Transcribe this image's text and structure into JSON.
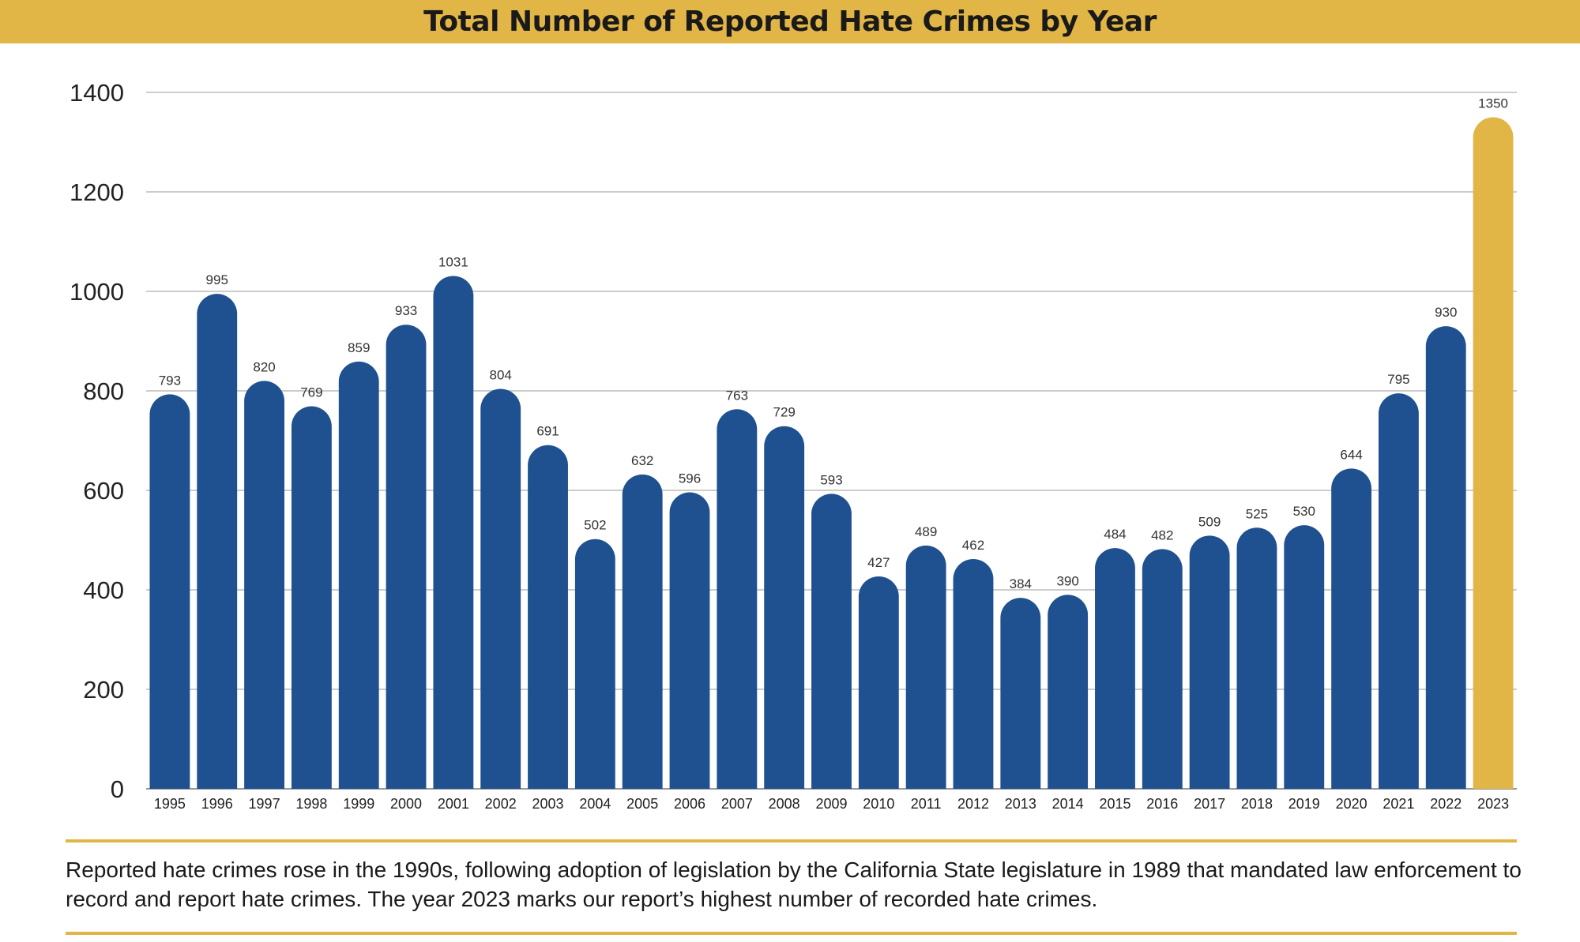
{
  "chart_data": {
    "type": "bar",
    "title": "Total Number of Reported Hate Crimes by Year",
    "xlabel": "",
    "ylabel": "",
    "ylim": [
      0,
      1400
    ],
    "yticks": [
      0,
      200,
      400,
      600,
      800,
      1000,
      1200,
      1400
    ],
    "grid": true,
    "categories": [
      "1995",
      "1996",
      "1997",
      "1998",
      "1999",
      "2000",
      "2001",
      "2002",
      "2003",
      "2004",
      "2005",
      "2006",
      "2007",
      "2008",
      "2009",
      "2010",
      "2011",
      "2012",
      "2013",
      "2014",
      "2015",
      "2016",
      "2017",
      "2018",
      "2019",
      "2020",
      "2021",
      "2022",
      "2023"
    ],
    "values": [
      793,
      995,
      820,
      769,
      859,
      933,
      1031,
      804,
      691,
      502,
      632,
      596,
      763,
      729,
      593,
      427,
      489,
      462,
      384,
      390,
      484,
      482,
      509,
      525,
      530,
      644,
      795,
      930,
      1350
    ],
    "colors": {
      "default": "#1F5190",
      "highlight": "#E2B646",
      "highlight_category": "2023",
      "grid": "#cccccc",
      "accent": "#E2B646"
    }
  },
  "caption": "Reported hate crimes rose in the 1990s, following adoption of legislation by the California State legislature in 1989 that mandated law enforcement to record and report hate crimes. The year 2023 marks our report’s highest number of recorded hate crimes."
}
